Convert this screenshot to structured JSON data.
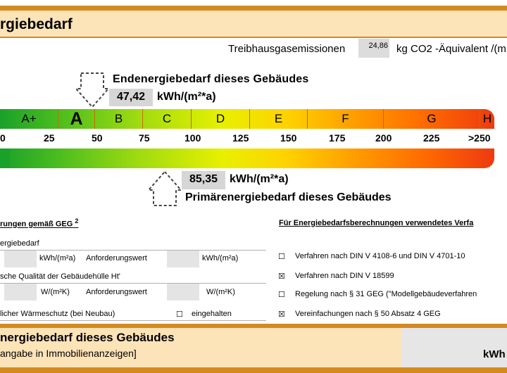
{
  "header": {
    "title": "rgiebedarf"
  },
  "ghg": {
    "label": "Treibhausgasemissionen",
    "value": "24,86",
    "unit": "kg CO2 -Äquivalent /(m"
  },
  "end_energy": {
    "label": "Endenergiebedarf dieses Gebäudes",
    "value": "47,42",
    "unit": "kWh/(m²*a)"
  },
  "classes": [
    "A+",
    "A",
    "B",
    "C",
    "D",
    "E",
    "F",
    "G",
    "H"
  ],
  "ticks": [
    "0",
    "25",
    "50",
    "75",
    "100",
    "125",
    "150",
    "175",
    "200",
    "225",
    ">250"
  ],
  "primary_energy": {
    "value": "85,35",
    "unit": "kWh/(m²*a)",
    "label": "Primärenergiebedarf dieses Gebäudes"
  },
  "requirements": {
    "heading": "rungen gemäß GEG",
    "footnote": "2",
    "row1_label": "ergiebedarf",
    "row1_unit": "kWh/(m²a)",
    "row1_req": "Anforderungswert",
    "row1_unit2": "kWh/(m²a)",
    "row2_label": "sche Qualität der Gebäudehülle Ht'",
    "row2_unit": "W/(m²K)",
    "row2_req": "Anforderungswert",
    "row2_unit2": "W/(m²K)",
    "row3_label": "licher Wärmeschutz (bei Neubau)",
    "row3_check": "☐",
    "row3_value": "eingehalten"
  },
  "methods": {
    "heading": "Für Energiebedarfsberechnungen verwendetes Verfa",
    "items": [
      {
        "check": "☐",
        "label": "Verfahren nach DIN V 4108-6 und DIN V 4701-10"
      },
      {
        "check": "☒",
        "label": "Verfahren nach DIN V 18599"
      },
      {
        "check": "☐",
        "label": "Regelung nach § 31 GEG (\"Modellgebäudeverfahren"
      },
      {
        "check": "☒",
        "label": "Vereinfachungen nach § 50 Absatz 4 GEG"
      }
    ]
  },
  "bottom": {
    "title": "nergiebedarf dieses Gebäudes",
    "subtitle": "angabe in Immobilienanzeigen]",
    "unit": "kWh"
  }
}
